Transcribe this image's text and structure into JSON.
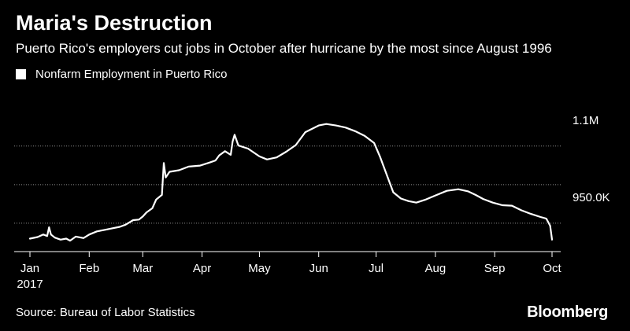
{
  "title": "Maria's Destruction",
  "subtitle": "Puerto Rico's employers cut jobs in October after hurricane by the most since August 1996",
  "source": "Source: Bureau of Labor Statistics",
  "brand": "Bloomberg",
  "chart_data": {
    "type": "line",
    "series": [
      {
        "name": "Nonfarm Employment in Puerto Rico",
        "color": "#ffffff",
        "x": [
          "2017-01-01",
          "2017-01-05",
          "2017-01-08",
          "2017-01-10",
          "2017-01-11",
          "2017-01-12",
          "2017-01-14",
          "2017-01-17",
          "2017-01-20",
          "2017-01-22",
          "2017-01-25",
          "2017-01-29",
          "2017-02-01",
          "2017-02-05",
          "2017-02-09",
          "2017-02-13",
          "2017-02-17",
          "2017-02-20",
          "2017-02-24",
          "2017-02-27",
          "2017-03-01",
          "2017-03-03",
          "2017-03-06",
          "2017-03-08",
          "2017-03-10",
          "2017-03-11",
          "2017-03-12",
          "2017-03-13",
          "2017-03-15",
          "2017-03-20",
          "2017-03-25",
          "2017-03-31",
          "2017-04-05",
          "2017-04-08",
          "2017-04-10",
          "2017-04-13",
          "2017-04-16",
          "2017-04-17",
          "2017-04-18",
          "2017-04-20",
          "2017-04-25",
          "2017-05-01",
          "2017-05-05",
          "2017-05-10",
          "2017-05-15",
          "2017-05-20",
          "2017-05-25",
          "2017-06-01",
          "2017-06-05",
          "2017-06-10",
          "2017-06-15",
          "2017-06-20",
          "2017-06-25",
          "2017-06-30",
          "2017-07-03",
          "2017-07-07",
          "2017-07-10",
          "2017-07-14",
          "2017-07-18",
          "2017-07-22",
          "2017-07-27",
          "2017-08-01",
          "2017-08-07",
          "2017-08-13",
          "2017-08-18",
          "2017-08-22",
          "2017-08-26",
          "2017-08-31",
          "2017-09-05",
          "2017-09-10",
          "2017-09-15",
          "2017-09-20",
          "2017-09-25",
          "2017-09-28",
          "2017-09-30",
          "2017-10-01"
        ],
        "y": [
          870,
          873,
          878,
          875,
          892,
          878,
          872,
          868,
          870,
          866,
          874,
          871,
          878,
          884,
          887,
          890,
          893,
          897,
          906,
          907,
          913,
          921,
          929,
          946,
          952,
          955,
          1017,
          989,
          1000,
          1003,
          1010,
          1012,
          1018,
          1022,
          1032,
          1040,
          1033,
          1059,
          1072,
          1051,
          1045,
          1030,
          1024,
          1028,
          1039,
          1052,
          1077,
          1090,
          1093,
          1090,
          1086,
          1079,
          1070,
          1056,
          1030,
          990,
          960,
          948,
          943,
          940,
          946,
          954,
          963,
          966,
          962,
          955,
          947,
          940,
          935,
          934,
          925,
          918,
          912,
          909,
          895,
          868
        ]
      }
    ],
    "x_ticks": [
      "Jan",
      "Feb",
      "Mar",
      "Apr",
      "May",
      "Jun",
      "Jul",
      "Aug",
      "Sep",
      "Oct"
    ],
    "x_year_label": "2017",
    "y_ticks": [
      {
        "value": 950,
        "label": "950.0K"
      },
      {
        "value": 1100,
        "label": "1.1M"
      }
    ],
    "ylim": [
      857,
      1120
    ],
    "grid": "horizontal dotted",
    "legend": "top-left"
  }
}
